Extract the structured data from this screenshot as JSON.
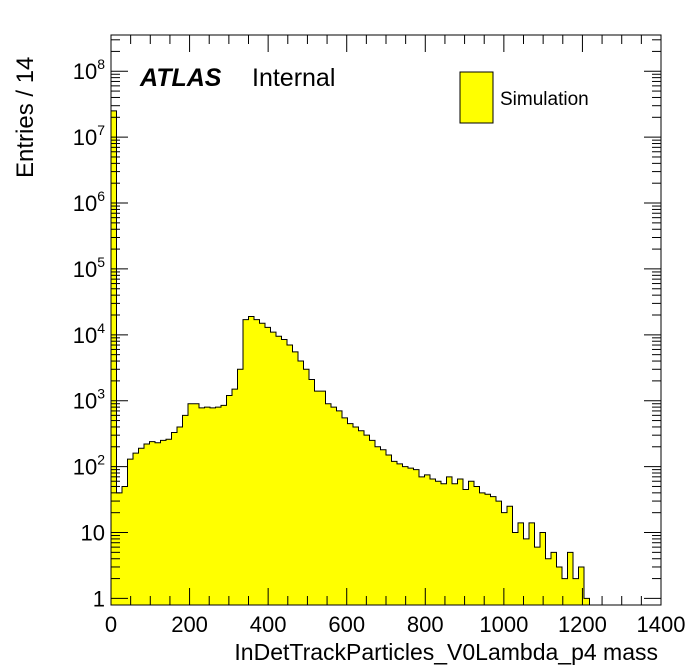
{
  "chart_data": {
    "type": "bar",
    "style": "log-y step histogram",
    "xlabel": "InDetTrackParticles_V0Lambda_p4 mass",
    "ylabel": "Entries / 14",
    "xlim": [
      0,
      1400
    ],
    "ylim_log10": [
      -0.1,
      8.55
    ],
    "y_scale": "log",
    "grid": false,
    "x_ticks": [
      {
        "value": 0,
        "label": "0"
      },
      {
        "value": 200,
        "label": "200"
      },
      {
        "value": 400,
        "label": "400"
      },
      {
        "value": 600,
        "label": "600"
      },
      {
        "value": 800,
        "label": "800"
      },
      {
        "value": 1000,
        "label": "1000"
      },
      {
        "value": 1200,
        "label": "1200"
      },
      {
        "value": 1400,
        "label": "1400"
      }
    ],
    "y_ticks": [
      {
        "value": 1,
        "base": "1",
        "exp": ""
      },
      {
        "value": 10,
        "base": "10",
        "exp": ""
      },
      {
        "value": 100,
        "base": "10",
        "exp": "2"
      },
      {
        "value": 1000,
        "base": "10",
        "exp": "3"
      },
      {
        "value": 10000,
        "base": "10",
        "exp": "4"
      },
      {
        "value": 100000,
        "base": "10",
        "exp": "5"
      },
      {
        "value": 1000000,
        "base": "10",
        "exp": "6"
      },
      {
        "value": 10000000,
        "base": "10",
        "exp": "7"
      },
      {
        "value": 100000000,
        "base": "10",
        "exp": "8"
      }
    ],
    "bin_width": 14,
    "bin_edges_start": 0,
    "values": [
      25000000,
      40,
      50,
      130,
      160,
      190,
      220,
      240,
      230,
      250,
      260,
      330,
      400,
      600,
      900,
      900,
      780,
      800,
      780,
      800,
      850,
      1200,
      1500,
      3000,
      17000,
      19000,
      17000,
      15000,
      13000,
      11000,
      9500,
      8500,
      7000,
      5500,
      4000,
      3000,
      2100,
      1400,
      1400,
      900,
      800,
      700,
      550,
      450,
      400,
      350,
      300,
      250,
      200,
      180,
      150,
      120,
      110,
      100,
      95,
      90,
      70,
      75,
      65,
      60,
      55,
      70,
      55,
      65,
      45,
      60,
      50,
      40,
      38,
      35,
      30,
      20,
      25,
      10,
      14,
      8,
      14,
      6,
      10,
      4,
      5,
      3,
      2,
      5,
      2,
      3,
      1,
      0,
      0,
      0,
      0,
      0,
      0,
      0,
      0,
      0,
      0,
      0,
      0,
      0
    ],
    "fill_color": "#ffff00",
    "line_color": "#000000",
    "legend": {
      "entry": "Simulation",
      "placement": "top-right"
    },
    "annotation": {
      "atlas": "ATLAS",
      "status": "Internal"
    }
  }
}
